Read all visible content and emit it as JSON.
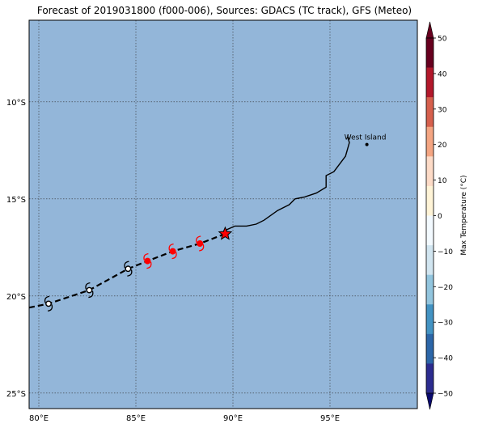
{
  "title": "Forecast of 2019031800 (f000-006), Sources: GDACS (TC track), GFS (Meteo)",
  "map": {
    "extent": {
      "lon": [
        79.5,
        99.5
      ],
      "lat": [
        -5.8,
        -25.8
      ]
    },
    "ocean_color": "#93b6d9",
    "grid_lons": [
      80,
      85,
      90,
      95
    ],
    "grid_lats": [
      -10,
      -15,
      -20,
      -25
    ],
    "lon_labels": [
      "80°E",
      "85°E",
      "90°E",
      "95°E"
    ],
    "lat_labels": [
      "10°S",
      "15°S",
      "20°S",
      "25°S"
    ],
    "place": {
      "name": "West Island",
      "lon": 96.9,
      "lat": -12.2
    },
    "coastline": [
      [
        89.5,
        -16.8
      ],
      [
        89.65,
        -16.6
      ],
      [
        90.1,
        -16.4
      ],
      [
        90.7,
        -16.4
      ],
      [
        91.2,
        -16.3
      ],
      [
        91.6,
        -16.1
      ],
      [
        92.3,
        -15.6
      ],
      [
        92.9,
        -15.3
      ],
      [
        93.2,
        -15.0
      ],
      [
        93.7,
        -14.9
      ],
      [
        94.3,
        -14.7
      ],
      [
        94.8,
        -14.4
      ],
      [
        94.8,
        -13.8
      ],
      [
        95.2,
        -13.6
      ],
      [
        95.8,
        -12.8
      ],
      [
        96.0,
        -12.1
      ],
      [
        95.9,
        -11.8
      ]
    ],
    "track": [
      {
        "lon": 79.5,
        "lat": -20.6,
        "kind": "line"
      },
      {
        "lon": 80.5,
        "lat": -20.4,
        "kind": "past"
      },
      {
        "lon": 82.6,
        "lat": -19.7,
        "kind": "past"
      },
      {
        "lon": 84.6,
        "lat": -18.6,
        "kind": "past"
      },
      {
        "lon": 85.6,
        "lat": -18.2,
        "kind": "forecast"
      },
      {
        "lon": 86.9,
        "lat": -17.7,
        "kind": "forecast"
      },
      {
        "lon": 88.3,
        "lat": -17.3,
        "kind": "forecast"
      },
      {
        "lon": 89.6,
        "lat": -16.8,
        "kind": "current"
      }
    ],
    "forecast_color": "#ff0000"
  },
  "colorbar": {
    "label": "Max Temperature (°C)",
    "ticks": [
      "50",
      "40",
      "30",
      "20",
      "10",
      "0",
      "−10",
      "−20",
      "−30",
      "−40",
      "−50"
    ],
    "colors": [
      "#67001f",
      "#b2182b",
      "#d6604d",
      "#f4a582",
      "#fddbc7",
      "#fff4d7",
      "#f3faff",
      "#d1e5f0",
      "#92c5de",
      "#4393c3",
      "#2c66a8",
      "#2c2c8f"
    ],
    "end_top": "#67001f",
    "end_bottom": "#0a0a6e"
  }
}
